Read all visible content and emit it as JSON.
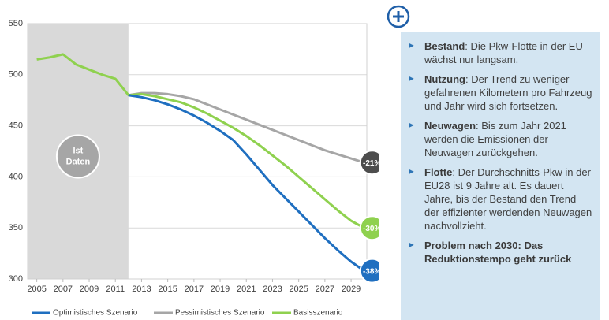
{
  "chart_data": {
    "type": "line",
    "x": [
      2005,
      2006,
      2007,
      2008,
      2009,
      2010,
      2011,
      2012,
      2013,
      2014,
      2015,
      2016,
      2017,
      2018,
      2019,
      2020,
      2021,
      2022,
      2023,
      2024,
      2025,
      2026,
      2027,
      2028,
      2029,
      2030
    ],
    "series": [
      {
        "name": "Optimistisches Szenario",
        "color": "#1f6fc0",
        "badge_color": "#1f6fc0",
        "end_label": "-38%",
        "values": [
          null,
          null,
          null,
          null,
          null,
          null,
          null,
          480,
          478,
          475,
          471,
          466,
          460,
          453,
          445,
          436,
          422,
          407,
          392,
          379,
          366,
          353,
          340,
          328,
          317,
          308
        ]
      },
      {
        "name": "Pessimistisches Szenario",
        "color": "#a6a6a6",
        "badge_color": "#4d4d4d",
        "end_label": "-21%",
        "values": [
          null,
          null,
          null,
          null,
          null,
          null,
          null,
          480,
          482,
          482,
          481,
          479,
          476,
          471,
          466,
          461,
          456,
          451,
          446,
          441,
          436,
          431,
          426,
          422,
          418,
          414
        ]
      },
      {
        "name": "Basisszenario",
        "color": "#8fd14f",
        "badge_color": "#8fd14f",
        "end_label": "-30%",
        "values": [
          515,
          517,
          520,
          510,
          505,
          500,
          496,
          480,
          481,
          479,
          476,
          473,
          468,
          462,
          455,
          448,
          440,
          431,
          421,
          411,
          400,
          389,
          378,
          367,
          357,
          350
        ]
      }
    ],
    "history_label": [
      "Ist",
      "Daten"
    ],
    "xlim": [
      2004.3,
      2030.2
    ],
    "xticks": [
      2005,
      2007,
      2009,
      2011,
      2013,
      2015,
      2017,
      2019,
      2021,
      2023,
      2025,
      2027,
      2029
    ],
    "ylim": [
      300,
      550
    ],
    "yticks": [
      300,
      350,
      400,
      450,
      500,
      550
    ],
    "grid": true
  },
  "panel": {
    "items": [
      {
        "lead": "Bestand",
        "text": ": Die Pkw-Flotte in der EU wächst nur langsam."
      },
      {
        "lead": "Nutzung",
        "text": ": Der Trend zu weniger gefahrenen Kilometern pro Fahrzeug und Jahr wird sich fortsetzen."
      },
      {
        "lead": "Neuwagen",
        "text": ": Bis zum Jahr 2021 werden die Emissionen der Neuwagen zurückgehen."
      },
      {
        "lead": "Flotte",
        "text": ": Der Durchschnitts-Pkw in der EU28 ist 9 Jahre alt. Es dauert Jahre, bis der Bestand den Trend der effizienter werdenden Neuwagen nachvollzieht."
      },
      {
        "lead": "Problem nach 2030: Das Reduktionstempo geht zurück"
      }
    ]
  }
}
